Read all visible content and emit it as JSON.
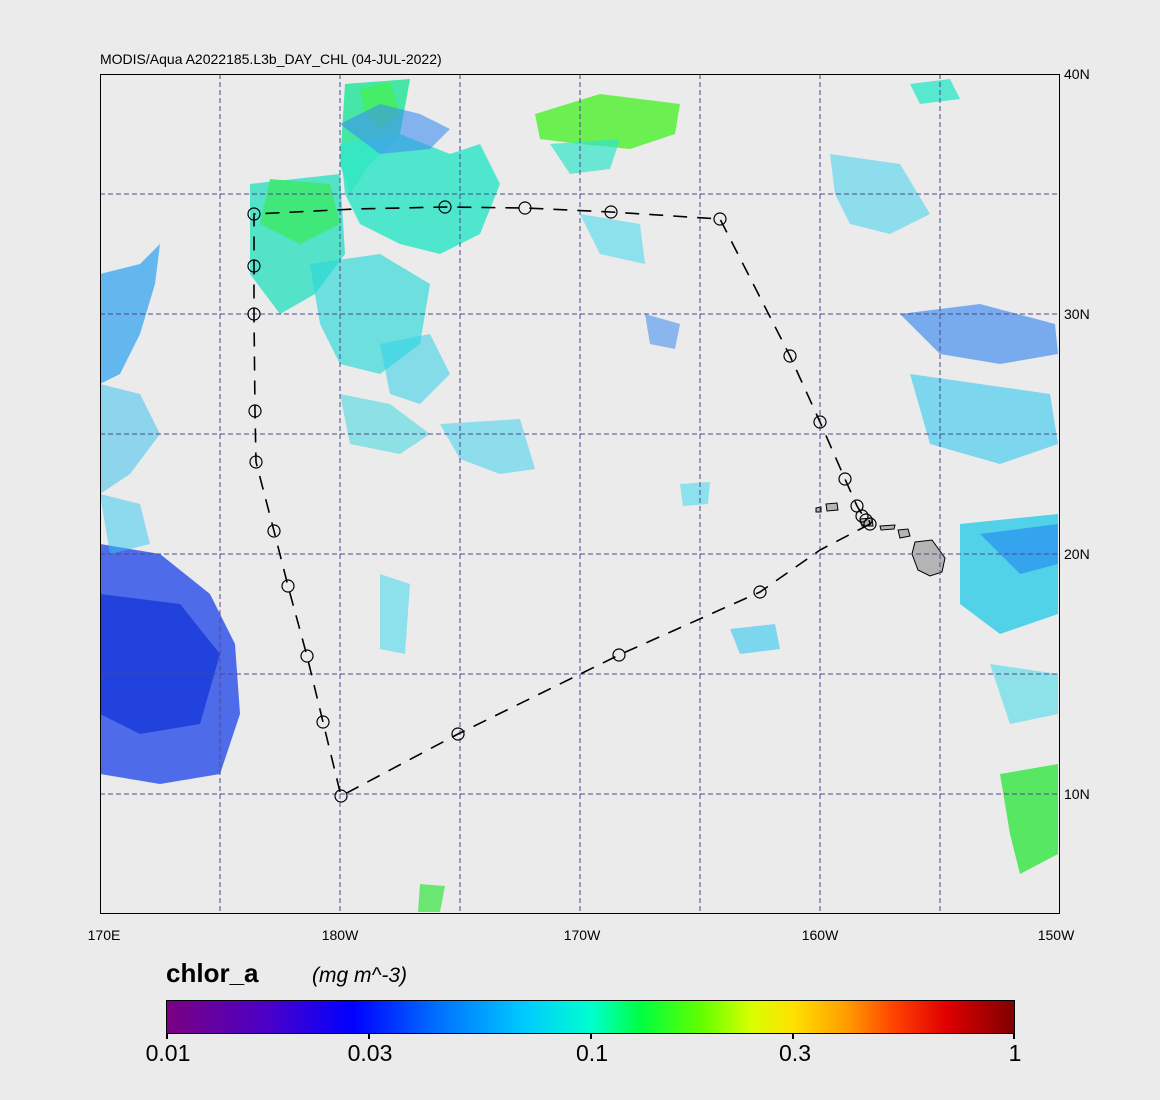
{
  "title": "MODIS/Aqua A2022185.L3b_DAY_CHL (04-JUL-2022)",
  "lat_labels": [
    "40N",
    "30N",
    "20N",
    "10N"
  ],
  "lon_labels": [
    "170E",
    "180W",
    "170W",
    "160W",
    "150W"
  ],
  "colorbar": {
    "variable": "chlor_a",
    "units": "(mg m^-3)",
    "ticks": [
      "0.01",
      "0.03",
      "0.1",
      "0.3",
      "1"
    ]
  },
  "colors": {
    "land": "#b4b4b4",
    "grid": "#4a4a8a",
    "background": "#ebebeb"
  }
}
